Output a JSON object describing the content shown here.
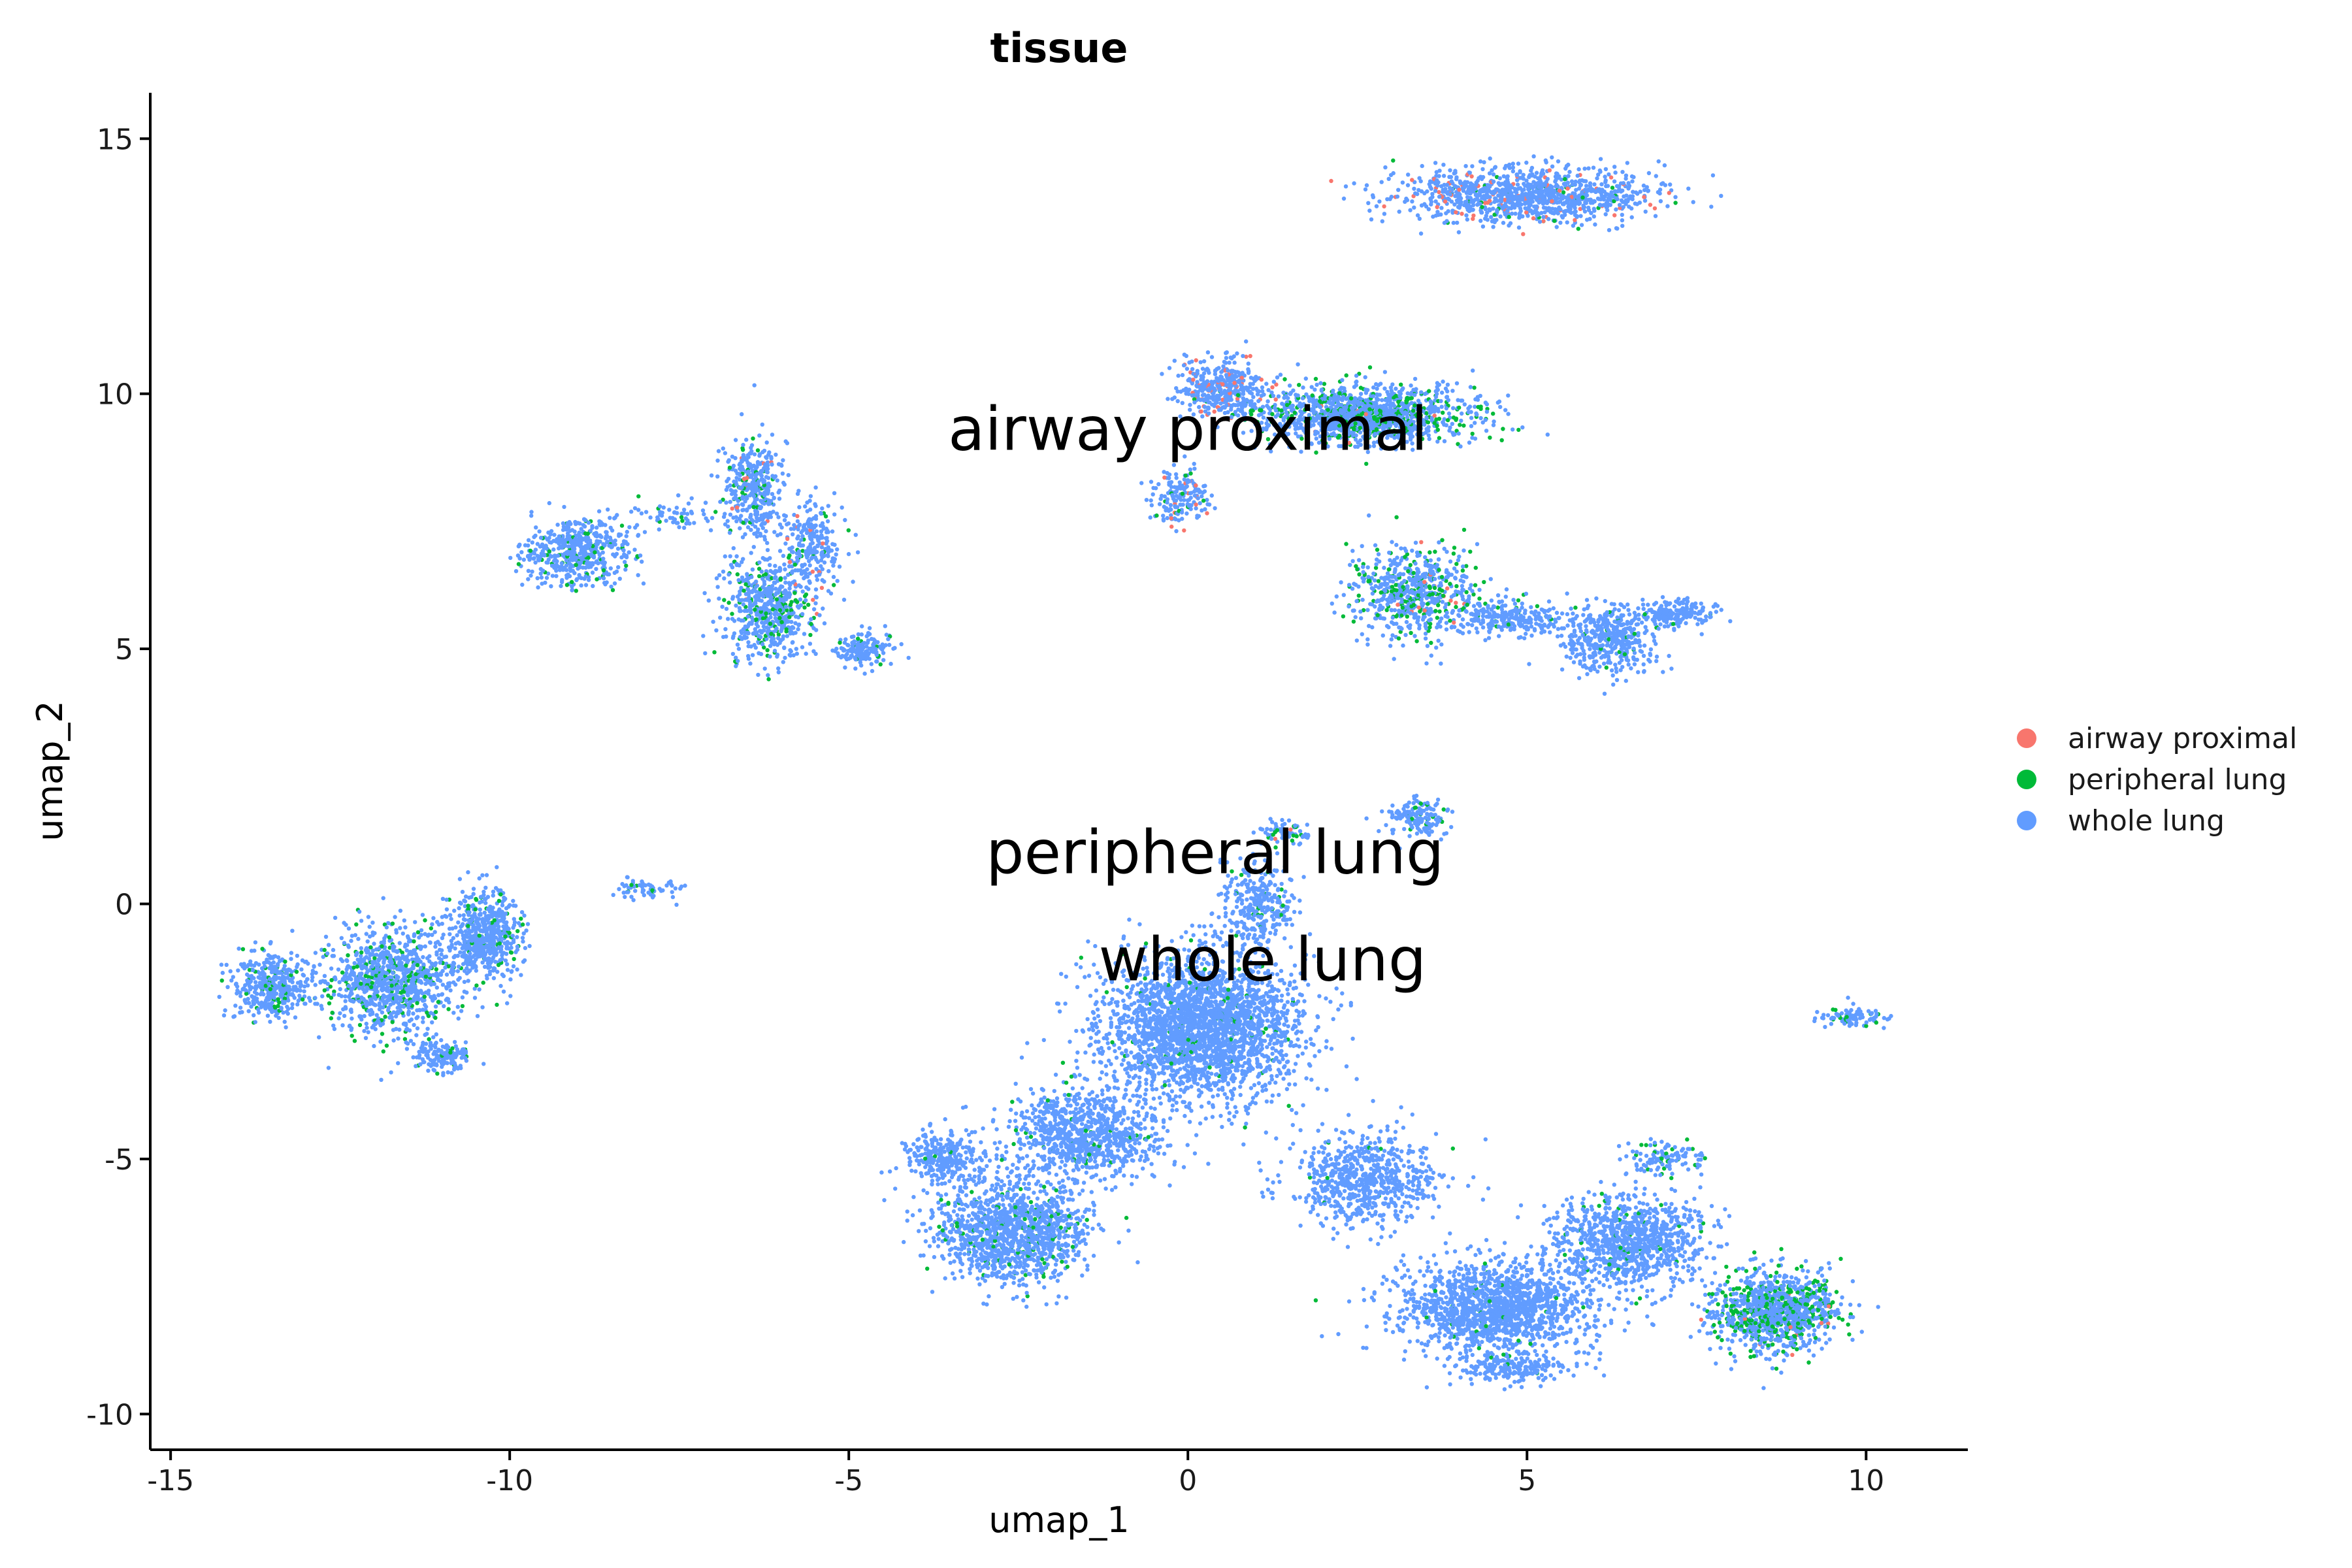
{
  "chart_data": {
    "type": "scatter",
    "title": "tissue",
    "xlabel": "umap_1",
    "ylabel": "umap_2",
    "xlim": [
      -15.3,
      11.5
    ],
    "ylim": [
      -10.7,
      15.9
    ],
    "x_ticks": [
      -15,
      -10,
      -5,
      0,
      5,
      10
    ],
    "y_ticks": [
      -10,
      -5,
      0,
      5,
      10,
      15
    ],
    "grid": false,
    "legend_position": "right",
    "series": [
      {
        "name": "airway proximal",
        "color": "#F8766D"
      },
      {
        "name": "peripheral lung",
        "color": "#00BA38"
      },
      {
        "name": "whole lung",
        "color": "#619CFF"
      }
    ],
    "cluster_labels": [
      {
        "text": "airway proximal",
        "x": 0.0,
        "y": 8.9
      },
      {
        "text": "peripheral lung",
        "x": 0.4,
        "y": 0.6
      },
      {
        "text": "whole lung",
        "x": 1.1,
        "y": -1.5
      }
    ],
    "clusters": [
      {
        "cx": 5.0,
        "cy": 13.9,
        "rx": 1.7,
        "ry": 0.5,
        "n": 1100,
        "mix": [
          0.06,
          0.03,
          0.91
        ]
      },
      {
        "cx": 0.5,
        "cy": 10.1,
        "rx": 0.6,
        "ry": 0.5,
        "n": 420,
        "mix": [
          0.14,
          0.03,
          0.83
        ]
      },
      {
        "cx": 2.6,
        "cy": 9.6,
        "rx": 1.4,
        "ry": 0.5,
        "n": 1400,
        "mix": [
          0.01,
          0.22,
          0.77
        ]
      },
      {
        "cx": -0.1,
        "cy": 8.0,
        "rx": 0.35,
        "ry": 0.5,
        "n": 180,
        "mix": [
          0.08,
          0.05,
          0.87
        ]
      },
      {
        "cx": 3.3,
        "cy": 6.1,
        "rx": 0.8,
        "ry": 0.8,
        "n": 650,
        "mix": [
          0.01,
          0.22,
          0.77
        ]
      },
      {
        "cx": 4.8,
        "cy": 5.6,
        "rx": 0.8,
        "ry": 0.3,
        "n": 260,
        "mix": [
          0.0,
          0.06,
          0.94
        ]
      },
      {
        "cx": 6.2,
        "cy": 5.2,
        "rx": 0.6,
        "ry": 0.6,
        "n": 420,
        "mix": [
          0.0,
          0.04,
          0.96
        ]
      },
      {
        "cx": 7.2,
        "cy": 5.7,
        "rx": 0.5,
        "ry": 0.25,
        "n": 180,
        "mix": [
          0.0,
          0.02,
          0.98
        ]
      },
      {
        "cx": -9.0,
        "cy": 6.9,
        "rx": 0.7,
        "ry": 0.6,
        "n": 520,
        "mix": [
          0.0,
          0.12,
          0.88
        ]
      },
      {
        "cx": -6.4,
        "cy": 8.1,
        "rx": 0.4,
        "ry": 0.9,
        "n": 380,
        "mix": [
          0.02,
          0.12,
          0.86
        ]
      },
      {
        "cx": -6.2,
        "cy": 5.8,
        "rx": 0.6,
        "ry": 1.0,
        "n": 620,
        "mix": [
          0.01,
          0.2,
          0.79
        ]
      },
      {
        "cx": -5.5,
        "cy": 7.0,
        "rx": 0.4,
        "ry": 0.8,
        "n": 240,
        "mix": [
          0.05,
          0.08,
          0.87
        ]
      },
      {
        "cx": -4.8,
        "cy": 5.0,
        "rx": 0.4,
        "ry": 0.3,
        "n": 160,
        "mix": [
          0.0,
          0.08,
          0.92
        ]
      },
      {
        "cx": -7.5,
        "cy": 7.6,
        "rx": 0.8,
        "ry": 0.3,
        "n": 70,
        "mix": [
          0.0,
          0.06,
          0.94
        ]
      },
      {
        "cx": -13.5,
        "cy": -1.6,
        "rx": 0.5,
        "ry": 0.6,
        "n": 420,
        "mix": [
          0.0,
          0.08,
          0.92
        ]
      },
      {
        "cx": -11.8,
        "cy": -1.5,
        "rx": 0.9,
        "ry": 0.9,
        "n": 1000,
        "mix": [
          0.0,
          0.16,
          0.84
        ]
      },
      {
        "cx": -10.4,
        "cy": -0.6,
        "rx": 0.5,
        "ry": 0.8,
        "n": 600,
        "mix": [
          0.0,
          0.1,
          0.9
        ]
      },
      {
        "cx": -11.0,
        "cy": -3.0,
        "rx": 0.4,
        "ry": 0.3,
        "n": 160,
        "mix": [
          0.0,
          0.1,
          0.9
        ]
      },
      {
        "cx": -8.0,
        "cy": 0.3,
        "rx": 0.5,
        "ry": 0.2,
        "n": 60,
        "mix": [
          0.0,
          0.1,
          0.9
        ]
      },
      {
        "cx": 3.4,
        "cy": 1.7,
        "rx": 0.4,
        "ry": 0.3,
        "n": 160,
        "mix": [
          0.0,
          0.12,
          0.88
        ]
      },
      {
        "cx": 1.4,
        "cy": 1.4,
        "rx": 0.4,
        "ry": 0.2,
        "n": 70,
        "mix": [
          0.05,
          0.15,
          0.8
        ]
      },
      {
        "cx": 0.2,
        "cy": -2.4,
        "rx": 1.3,
        "ry": 1.3,
        "n": 2600,
        "mix": [
          0.0,
          0.03,
          0.97
        ]
      },
      {
        "cx": 1.0,
        "cy": 0.0,
        "rx": 0.5,
        "ry": 0.7,
        "n": 300,
        "mix": [
          0.0,
          0.05,
          0.95
        ]
      },
      {
        "cx": -1.5,
        "cy": -4.5,
        "rx": 1.0,
        "ry": 0.8,
        "n": 900,
        "mix": [
          0.0,
          0.04,
          0.96
        ]
      },
      {
        "cx": -2.6,
        "cy": -6.4,
        "rx": 1.0,
        "ry": 0.9,
        "n": 1300,
        "mix": [
          0.0,
          0.08,
          0.92
        ]
      },
      {
        "cx": -3.6,
        "cy": -5.0,
        "rx": 0.5,
        "ry": 0.5,
        "n": 300,
        "mix": [
          0.0,
          0.02,
          0.98
        ]
      },
      {
        "cx": 2.6,
        "cy": -5.4,
        "rx": 1.0,
        "ry": 0.8,
        "n": 700,
        "mix": [
          0.0,
          0.02,
          0.98
        ]
      },
      {
        "cx": 4.6,
        "cy": -7.9,
        "rx": 1.3,
        "ry": 0.8,
        "n": 1500,
        "mix": [
          0.0,
          0.02,
          0.98
        ]
      },
      {
        "cx": 6.5,
        "cy": -6.6,
        "rx": 1.0,
        "ry": 0.8,
        "n": 1000,
        "mix": [
          0.0,
          0.03,
          0.97
        ]
      },
      {
        "cx": 8.7,
        "cy": -8.0,
        "rx": 0.8,
        "ry": 0.7,
        "n": 1100,
        "mix": [
          0.01,
          0.28,
          0.71
        ]
      },
      {
        "cx": 7.0,
        "cy": -5.0,
        "rx": 0.5,
        "ry": 0.3,
        "n": 120,
        "mix": [
          0.0,
          0.15,
          0.85
        ]
      },
      {
        "cx": 4.8,
        "cy": -9.1,
        "rx": 0.8,
        "ry": 0.25,
        "n": 200,
        "mix": [
          0.0,
          0.02,
          0.98
        ]
      },
      {
        "cx": 9.8,
        "cy": -2.2,
        "rx": 0.5,
        "ry": 0.2,
        "n": 90,
        "mix": [
          0.0,
          0.15,
          0.85
        ]
      }
    ]
  }
}
